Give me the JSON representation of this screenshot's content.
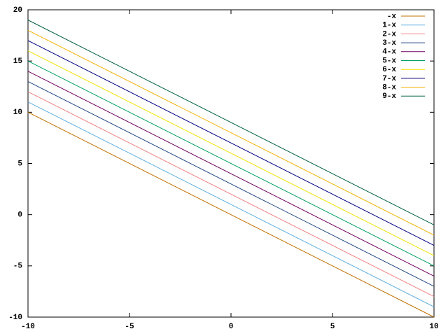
{
  "chart_data": {
    "type": "line",
    "x": [
      -10,
      10
    ],
    "series": [
      {
        "name": "-x",
        "color": "#c07000",
        "values": [
          10,
          -10
        ]
      },
      {
        "name": "1-x",
        "color": "#60b0e0",
        "values": [
          11,
          -9
        ]
      },
      {
        "name": "2-x",
        "color": "#f08080",
        "values": [
          12,
          -8
        ]
      },
      {
        "name": "3-x",
        "color": "#204880",
        "values": [
          13,
          -7
        ]
      },
      {
        "name": "4-x",
        "color": "#700060",
        "values": [
          14,
          -6
        ]
      },
      {
        "name": "5-x",
        "color": "#00a060",
        "values": [
          15,
          -5
        ]
      },
      {
        "name": "6-x",
        "color": "#f0e000",
        "values": [
          16,
          -4
        ]
      },
      {
        "name": "7-x",
        "color": "#000080",
        "values": [
          17,
          -3
        ]
      },
      {
        "name": "8-x",
        "color": "#f0b000",
        "values": [
          18,
          -2
        ]
      },
      {
        "name": "9-x",
        "color": "#006040",
        "values": [
          19,
          -1
        ]
      }
    ],
    "xlim": [
      -10,
      10
    ],
    "xticks": [
      -10,
      -5,
      0,
      5,
      10
    ],
    "ylim": [
      -10,
      20
    ],
    "yticks": [
      -10,
      -5,
      0,
      5,
      10,
      15,
      20
    ],
    "legend": "top-right"
  }
}
